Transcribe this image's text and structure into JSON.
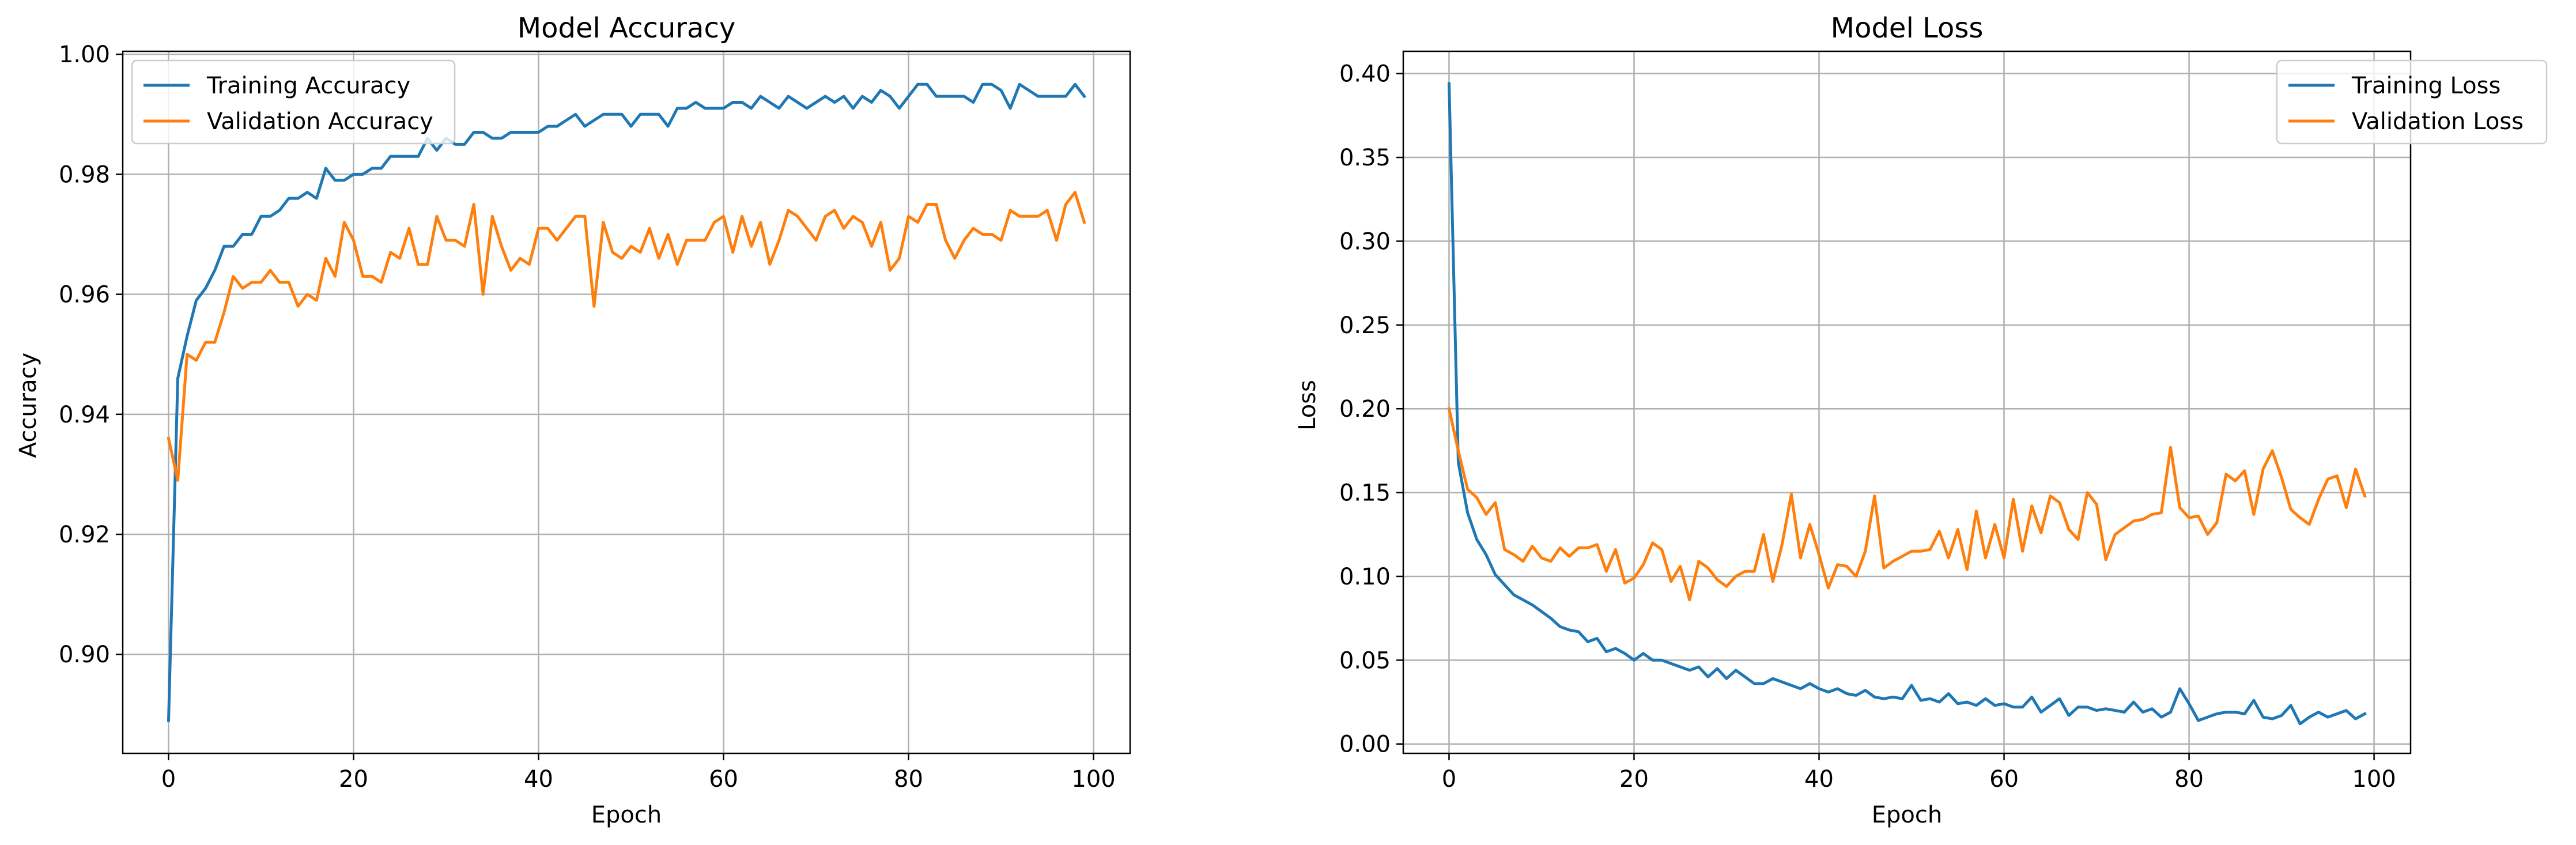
{
  "colors": {
    "training": "#1f77b4",
    "validation": "#ff7f0e",
    "grid": "#b0b0b0",
    "axes": "#000000"
  },
  "chart_data": [
    {
      "type": "line",
      "title": "Model Accuracy",
      "xlabel": "Epoch",
      "ylabel": "Accuracy",
      "xlim": [
        -4.95,
        103.95
      ],
      "ylim": [
        0.8835,
        1.0005
      ],
      "xticks": [
        0,
        20,
        40,
        60,
        80,
        100
      ],
      "yticks": [
        0.9,
        0.92,
        0.94,
        0.96,
        0.98,
        1.0
      ],
      "ytick_labels": [
        "0.90",
        "0.92",
        "0.94",
        "0.96",
        "0.98",
        "1.00"
      ],
      "grid": true,
      "legend": "top-left",
      "series": [
        {
          "name": "Training Accuracy",
          "color": "#1f77b4",
          "values": [
            0.889,
            0.946,
            0.953,
            0.959,
            0.961,
            0.964,
            0.968,
            0.968,
            0.97,
            0.97,
            0.973,
            0.973,
            0.974,
            0.976,
            0.976,
            0.977,
            0.976,
            0.981,
            0.979,
            0.979,
            0.98,
            0.98,
            0.981,
            0.981,
            0.983,
            0.983,
            0.983,
            0.983,
            0.986,
            0.984,
            0.986,
            0.985,
            0.985,
            0.987,
            0.987,
            0.986,
            0.986,
            0.987,
            0.987,
            0.987,
            0.987,
            0.988,
            0.988,
            0.989,
            0.99,
            0.988,
            0.989,
            0.99,
            0.99,
            0.99,
            0.988,
            0.99,
            0.99,
            0.99,
            0.988,
            0.991,
            0.991,
            0.992,
            0.991,
            0.991,
            0.991,
            0.992,
            0.992,
            0.991,
            0.993,
            0.992,
            0.991,
            0.993,
            0.992,
            0.991,
            0.992,
            0.993,
            0.992,
            0.993,
            0.991,
            0.993,
            0.992,
            0.994,
            0.993,
            0.991,
            0.993,
            0.995,
            0.995,
            0.993,
            0.993,
            0.993,
            0.993,
            0.992,
            0.995,
            0.995,
            0.994,
            0.991,
            0.995,
            0.994,
            0.993,
            0.993,
            0.993,
            0.993,
            0.995,
            0.993
          ]
        },
        {
          "name": "Validation Accuracy",
          "color": "#ff7f0e",
          "values": [
            0.936,
            0.929,
            0.95,
            0.949,
            0.952,
            0.952,
            0.957,
            0.963,
            0.961,
            0.962,
            0.962,
            0.964,
            0.962,
            0.962,
            0.958,
            0.96,
            0.959,
            0.966,
            0.963,
            0.972,
            0.969,
            0.963,
            0.963,
            0.962,
            0.967,
            0.966,
            0.971,
            0.965,
            0.965,
            0.973,
            0.969,
            0.969,
            0.968,
            0.975,
            0.96,
            0.973,
            0.968,
            0.964,
            0.966,
            0.965,
            0.971,
            0.971,
            0.969,
            0.971,
            0.973,
            0.973,
            0.958,
            0.972,
            0.967,
            0.966,
            0.968,
            0.967,
            0.971,
            0.966,
            0.97,
            0.965,
            0.969,
            0.969,
            0.969,
            0.972,
            0.973,
            0.967,
            0.973,
            0.968,
            0.972,
            0.965,
            0.969,
            0.974,
            0.973,
            0.971,
            0.969,
            0.973,
            0.974,
            0.971,
            0.973,
            0.972,
            0.968,
            0.972,
            0.964,
            0.966,
            0.973,
            0.972,
            0.975,
            0.975,
            0.969,
            0.966,
            0.969,
            0.971,
            0.97,
            0.97,
            0.969,
            0.974,
            0.973,
            0.973,
            0.973,
            0.974,
            0.969,
            0.975,
            0.977,
            0.972
          ]
        }
      ]
    },
    {
      "type": "line",
      "title": "Model Loss",
      "xlabel": "Epoch",
      "ylabel": "Loss",
      "xlim": [
        -4.95,
        103.95
      ],
      "ylim": [
        -0.0056,
        0.4133
      ],
      "xticks": [
        0,
        20,
        40,
        60,
        80,
        100
      ],
      "yticks": [
        0.0,
        0.05,
        0.1,
        0.15,
        0.2,
        0.25,
        0.3,
        0.35,
        0.4
      ],
      "ytick_labels": [
        "0.00",
        "0.05",
        "0.10",
        "0.15",
        "0.20",
        "0.25",
        "0.30",
        "0.35",
        "0.40"
      ],
      "grid": true,
      "legend": "top-right",
      "series": [
        {
          "name": "Training Loss",
          "color": "#1f77b4",
          "values": [
            0.394,
            0.168,
            0.138,
            0.122,
            0.113,
            0.101,
            0.095,
            0.089,
            0.086,
            0.083,
            0.079,
            0.075,
            0.07,
            0.068,
            0.067,
            0.061,
            0.063,
            0.055,
            0.057,
            0.054,
            0.05,
            0.054,
            0.05,
            0.05,
            0.048,
            0.046,
            0.044,
            0.046,
            0.04,
            0.045,
            0.039,
            0.044,
            0.04,
            0.036,
            0.036,
            0.039,
            0.037,
            0.035,
            0.033,
            0.036,
            0.033,
            0.031,
            0.033,
            0.03,
            0.029,
            0.032,
            0.028,
            0.027,
            0.028,
            0.027,
            0.035,
            0.026,
            0.027,
            0.025,
            0.03,
            0.024,
            0.025,
            0.023,
            0.027,
            0.023,
            0.024,
            0.022,
            0.022,
            0.028,
            0.019,
            0.023,
            0.027,
            0.017,
            0.022,
            0.022,
            0.02,
            0.021,
            0.02,
            0.019,
            0.025,
            0.019,
            0.021,
            0.016,
            0.019,
            0.033,
            0.024,
            0.014,
            0.016,
            0.018,
            0.019,
            0.019,
            0.018,
            0.026,
            0.016,
            0.015,
            0.017,
            0.023,
            0.012,
            0.016,
            0.019,
            0.016,
            0.018,
            0.02,
            0.015,
            0.018
          ]
        },
        {
          "name": "Validation Loss",
          "color": "#ff7f0e",
          "values": [
            0.2,
            0.175,
            0.152,
            0.147,
            0.137,
            0.144,
            0.116,
            0.113,
            0.109,
            0.118,
            0.111,
            0.109,
            0.117,
            0.112,
            0.117,
            0.117,
            0.119,
            0.103,
            0.116,
            0.096,
            0.099,
            0.107,
            0.12,
            0.116,
            0.097,
            0.106,
            0.086,
            0.109,
            0.105,
            0.098,
            0.094,
            0.1,
            0.103,
            0.103,
            0.125,
            0.097,
            0.119,
            0.149,
            0.111,
            0.131,
            0.113,
            0.093,
            0.107,
            0.106,
            0.1,
            0.115,
            0.148,
            0.105,
            0.109,
            0.112,
            0.115,
            0.115,
            0.116,
            0.127,
            0.111,
            0.128,
            0.104,
            0.139,
            0.111,
            0.131,
            0.111,
            0.146,
            0.115,
            0.142,
            0.126,
            0.148,
            0.144,
            0.128,
            0.122,
            0.15,
            0.143,
            0.11,
            0.125,
            0.129,
            0.133,
            0.134,
            0.137,
            0.138,
            0.177,
            0.141,
            0.135,
            0.136,
            0.125,
            0.132,
            0.161,
            0.157,
            0.163,
            0.137,
            0.164,
            0.175,
            0.159,
            0.14,
            0.135,
            0.131,
            0.146,
            0.158,
            0.16,
            0.141,
            0.164,
            0.148
          ]
        }
      ]
    }
  ]
}
